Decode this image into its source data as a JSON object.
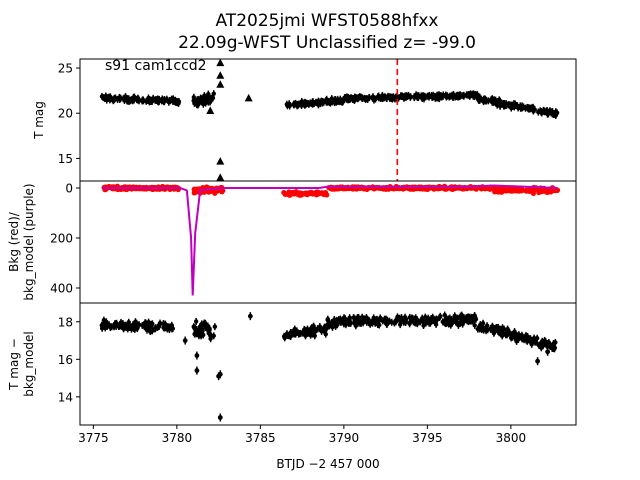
{
  "title_line1": "AT2025jmi  WFST0588hfxx",
  "title_line2": "22.09g-WFST Unclassified z= -99.0",
  "colors": {
    "data": "#000000",
    "bkg": "#ff0000",
    "model": "#bf00bf",
    "marker_line": "#ff0000"
  },
  "chart_data": [
    {
      "type": "scatter",
      "name": "light-curve",
      "ylabel": "T mag",
      "ylim": [
        26,
        12.5
      ],
      "yticks": [
        15,
        20,
        25
      ],
      "annotation": "s91 cam1ccd2",
      "vline_x": 3793.2,
      "clusters": [
        {
          "x0": 3775.5,
          "x1": 3780.2,
          "y_start": 21.7,
          "y_end": 21.3,
          "spread": 0.55
        },
        {
          "x0": 3781.0,
          "x1": 3782.3,
          "y_start": 21.3,
          "y_end": 21.6,
          "spread": 1.4
        },
        {
          "x0": 3786.4,
          "x1": 3790.0,
          "y_start": 20.9,
          "y_end": 21.4,
          "spread": 0.5
        },
        {
          "x0": 3790.0,
          "x1": 3798.0,
          "y_start": 21.6,
          "y_end": 22.0,
          "spread": 0.45
        },
        {
          "x0": 3798.0,
          "x1": 3802.8,
          "y_start": 21.6,
          "y_end": 19.9,
          "spread": 0.6
        }
      ],
      "points": [
        [
          3782.6,
          12.9
        ],
        [
          3782.6,
          14.7
        ],
        [
          3782.6,
          23.2
        ],
        [
          3782.6,
          24.2
        ],
        [
          3782.6,
          25.6
        ],
        [
          3782.0,
          20.3
        ],
        [
          3784.3,
          21.7
        ]
      ]
    },
    {
      "type": "line",
      "name": "background",
      "ylabel": "Bkg (red)/",
      "ylabel2": "bkg_model (purple)",
      "ylim": [
        -28,
        460
      ],
      "yticks": [
        0,
        200,
        400
      ],
      "bkg_segments": [
        {
          "x0": 3775.5,
          "x1": 3780.2,
          "y": 0,
          "spread": 12
        },
        {
          "x0": 3781.0,
          "x1": 3782.8,
          "y": 8,
          "spread": 20
        },
        {
          "x0": 3786.4,
          "x1": 3789.0,
          "y": 22,
          "spread": 12
        },
        {
          "x0": 3789.0,
          "x1": 3799.0,
          "y": 0,
          "spread": 9
        },
        {
          "x0": 3799.0,
          "x1": 3802.8,
          "y": 8,
          "spread": 18
        }
      ],
      "model_x": [
        3775.5,
        3780.2,
        3780.6,
        3780.85,
        3780.95,
        3781.1,
        3781.4,
        3782.8,
        3788.5,
        3789.0,
        3797.5,
        3799.0,
        3802.8
      ],
      "model_y": [
        0,
        0,
        10,
        200,
        430,
        180,
        8,
        0,
        0,
        -5,
        -5,
        -10,
        0
      ]
    },
    {
      "type": "scatter",
      "name": "residual",
      "ylabel": "T mag −",
      "ylabel2": "bkg_model",
      "ylim": [
        19,
        12.5
      ],
      "yticks": [
        14,
        16,
        18
      ],
      "clusters": [
        {
          "x0": 3775.5,
          "x1": 3779.8,
          "y_start": 17.8,
          "y_end": 17.7,
          "spread": 0.55
        },
        {
          "x0": 3781.0,
          "x1": 3782.3,
          "y_start": 17.7,
          "y_end": 17.5,
          "spread": 0.9
        },
        {
          "x0": 3786.4,
          "x1": 3789.0,
          "y_start": 17.3,
          "y_end": 17.6,
          "spread": 0.5
        },
        {
          "x0": 3789.0,
          "x1": 3798.0,
          "y_start": 18.0,
          "y_end": 18.1,
          "spread": 0.5
        },
        {
          "x0": 3798.0,
          "x1": 3802.8,
          "y_start": 17.8,
          "y_end": 16.6,
          "spread": 0.55
        }
      ],
      "points": [
        [
          3782.6,
          12.9
        ],
        [
          3782.5,
          15.1
        ],
        [
          3782.6,
          15.2
        ],
        [
          3781.2,
          15.4
        ],
        [
          3781.2,
          16.2
        ],
        [
          3780.5,
          17.0
        ],
        [
          3784.4,
          18.3
        ],
        [
          3801.6,
          15.9
        ],
        [
          3802.2,
          16.4
        ]
      ]
    }
  ],
  "x_axis": {
    "label": "BTJD −2 457 000",
    "xlim": [
      3774.2,
      3803.9
    ],
    "ticks": [
      3775,
      3780,
      3785,
      3790,
      3795,
      3800
    ]
  }
}
